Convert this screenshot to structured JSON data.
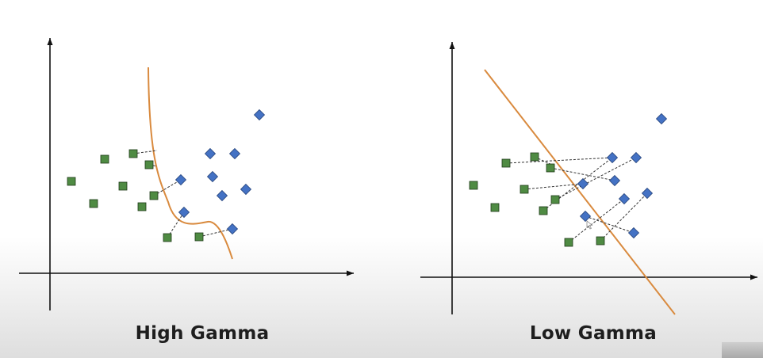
{
  "panels": [
    {
      "id": "high",
      "caption": "High Gamma",
      "squares": [
        [
          90,
          229
        ],
        [
          118,
          257
        ],
        [
          132,
          201
        ],
        [
          155,
          235
        ],
        [
          168,
          194
        ],
        [
          179,
          261
        ],
        [
          188,
          208
        ],
        [
          194,
          247
        ],
        [
          211,
          300
        ],
        [
          251,
          299
        ]
      ],
      "diamonds": [
        [
          327,
          145
        ],
        [
          265,
          194
        ],
        [
          296,
          194
        ],
        [
          268,
          223
        ],
        [
          228,
          227
        ],
        [
          310,
          239
        ],
        [
          280,
          247
        ],
        [
          232,
          268
        ],
        [
          293,
          289
        ]
      ],
      "links": [
        [
          168,
          194,
          198,
          190
        ],
        [
          188,
          208,
          198,
          210
        ],
        [
          194,
          247,
          228,
          227
        ],
        [
          211,
          300,
          232,
          268
        ],
        [
          251,
          299,
          293,
          289
        ]
      ],
      "boundary": "curve"
    },
    {
      "id": "low",
      "caption": "Low Gamma",
      "squares": [
        [
          597,
          234
        ],
        [
          624,
          262
        ],
        [
          638,
          206
        ],
        [
          661,
          239
        ],
        [
          674,
          198
        ],
        [
          685,
          266
        ],
        [
          694,
          212
        ],
        [
          700,
          252
        ],
        [
          717,
          306
        ],
        [
          757,
          304
        ]
      ],
      "diamonds": [
        [
          834,
          150
        ],
        [
          772,
          199
        ],
        [
          802,
          199
        ],
        [
          775,
          228
        ],
        [
          735,
          232
        ],
        [
          816,
          244
        ],
        [
          787,
          251
        ],
        [
          738,
          273
        ],
        [
          799,
          294
        ]
      ],
      "links": [
        [
          638,
          206,
          772,
          199
        ],
        [
          674,
          198,
          700,
          210
        ],
        [
          661,
          239,
          735,
          232
        ],
        [
          694,
          212,
          775,
          228
        ],
        [
          685,
          266,
          772,
          199
        ],
        [
          700,
          252,
          802,
          199
        ],
        [
          717,
          306,
          787,
          251
        ],
        [
          757,
          304,
          816,
          244
        ],
        [
          738,
          273,
          799,
          294
        ]
      ],
      "boundary": "line"
    }
  ],
  "colors": {
    "square_fill": "#4f8b43",
    "diamond_fill": "#4472c4",
    "boundary": "#d98a3e",
    "axis": "#111111",
    "link": "#333333"
  }
}
